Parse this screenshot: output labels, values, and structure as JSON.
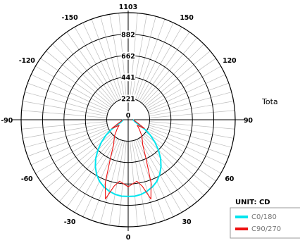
{
  "chart_data": {
    "type": "polar",
    "unit_label": "UNIT: CD",
    "annotation_fragment": "Tota",
    "radial_ticks": [
      221,
      441,
      662,
      882,
      1103
    ],
    "radial_tick_labels": [
      "221",
      "441",
      "662",
      "882",
      "1103"
    ],
    "center_label": "0",
    "rmax": 1103,
    "angle_labels": [
      {
        "angle": 150,
        "text": "150"
      },
      {
        "angle": -150,
        "text": "-150"
      },
      {
        "angle": 120,
        "text": "120"
      },
      {
        "angle": -120,
        "text": "-120"
      },
      {
        "angle": 90,
        "text": "90"
      },
      {
        "angle": -90,
        "text": "-90"
      },
      {
        "angle": 60,
        "text": "60"
      },
      {
        "angle": -60,
        "text": "-60"
      },
      {
        "angle": 30,
        "text": "30"
      },
      {
        "angle": -30,
        "text": "-30"
      },
      {
        "angle": 0,
        "text": "0"
      }
    ],
    "grid": true,
    "angular_grid_step": 5,
    "legend_position": "bottom-right",
    "series": [
      {
        "name": "C0/180",
        "color": "#00e5ee",
        "points": [
          [
            0,
            790
          ],
          [
            5,
            790
          ],
          [
            10,
            780
          ],
          [
            15,
            760
          ],
          [
            20,
            735
          ],
          [
            25,
            700
          ],
          [
            30,
            650
          ],
          [
            35,
            590
          ],
          [
            40,
            520
          ],
          [
            45,
            440
          ],
          [
            50,
            360
          ],
          [
            55,
            280
          ],
          [
            60,
            200
          ],
          [
            65,
            120
          ],
          [
            70,
            85
          ],
          [
            75,
            70
          ],
          [
            80,
            62
          ],
          [
            85,
            55
          ],
          [
            90,
            50
          ]
        ],
        "symmetric": true
      },
      {
        "name": "C90/270",
        "color": "#ee1111",
        "points": [
          [
            0,
            690
          ],
          [
            8,
            640
          ],
          [
            12,
            700
          ],
          [
            16,
            850
          ],
          [
            20,
            690
          ],
          [
            25,
            430
          ],
          [
            30,
            300
          ],
          [
            40,
            220
          ],
          [
            50,
            150
          ],
          [
            58,
            110
          ],
          [
            62,
            190
          ],
          [
            70,
            110
          ],
          [
            80,
            70
          ],
          [
            90,
            60
          ]
        ],
        "symmetric": true
      }
    ]
  }
}
